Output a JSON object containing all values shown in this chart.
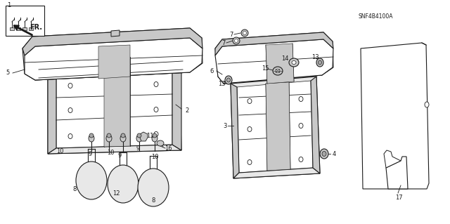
{
  "bg_color": "#ffffff",
  "line_color": "#1a1a1a",
  "code": "SNF4B4100A",
  "fill_seat": "#e8e8e8",
  "fill_white": "#ffffff",
  "fill_gray": "#c8c8c8",
  "fill_dark": "#a8a8a8"
}
